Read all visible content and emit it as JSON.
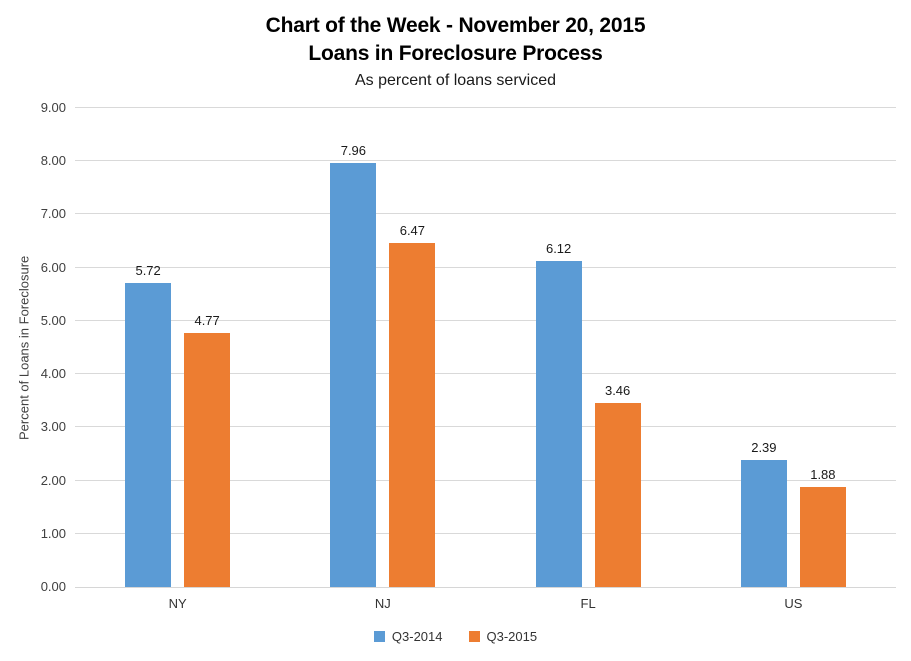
{
  "chart_data": {
    "type": "bar",
    "title": "Chart of the Week - November 20, 2015",
    "title_line2": "Loans in Foreclosure Process",
    "subtitle": "As percent of loans serviced",
    "categories": [
      "NY",
      "NJ",
      "FL",
      "US"
    ],
    "series": [
      {
        "name": "Q3-2014",
        "color": "#5B9BD5",
        "values": [
          5.72,
          7.96,
          6.12,
          2.39
        ]
      },
      {
        "name": "Q3-2015",
        "color": "#ED7D31",
        "values": [
          4.77,
          6.47,
          3.46,
          1.88
        ]
      }
    ],
    "xlabel": "",
    "ylabel": "Percent of Loans in Foreclosure",
    "ylim": [
      0,
      9
    ],
    "ytick_step": 1,
    "ytick_labels": [
      "0.00",
      "1.00",
      "2.00",
      "3.00",
      "4.00",
      "5.00",
      "6.00",
      "7.00",
      "8.00",
      "9.00"
    ],
    "grid": true,
    "data_labels": true,
    "legend_position": "bottom",
    "colors": {
      "gridline": "#D9D9D9",
      "axis_line": "#D6D6D6",
      "tick_text": "#404040",
      "label_text": "#1A1A1A"
    }
  }
}
